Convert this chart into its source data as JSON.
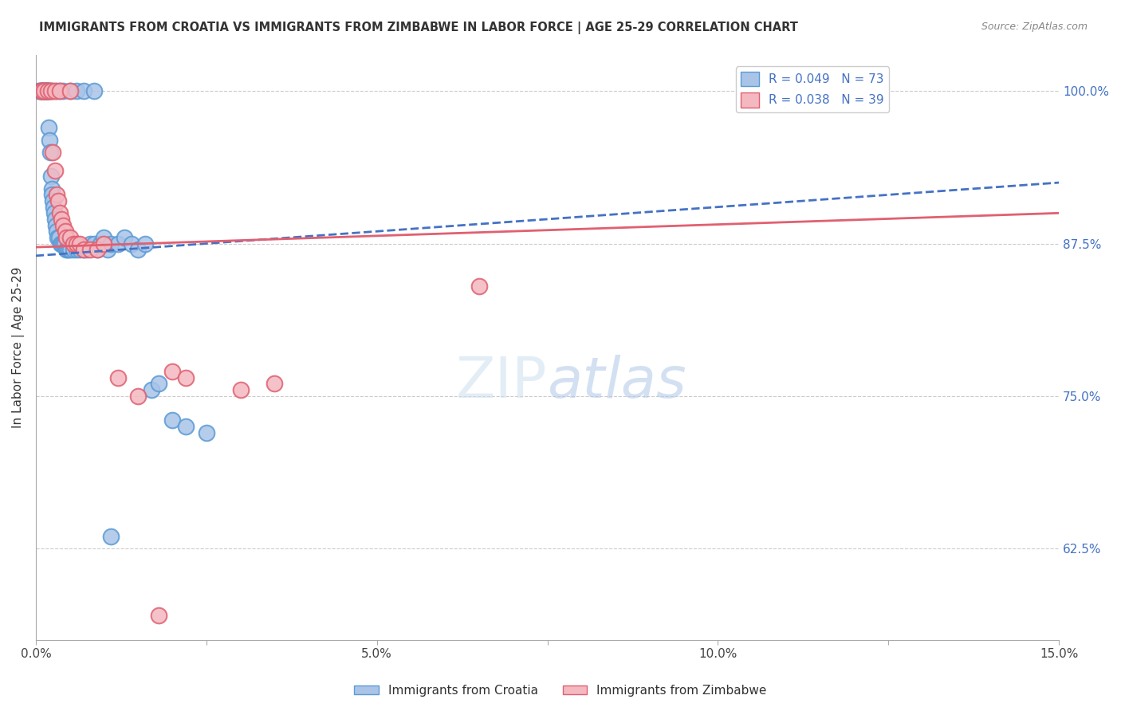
{
  "title": "IMMIGRANTS FROM CROATIA VS IMMIGRANTS FROM ZIMBABWE IN LABOR FORCE | AGE 25-29 CORRELATION CHART",
  "source": "Source: ZipAtlas.com",
  "ylabel": "In Labor Force | Age 25-29",
  "xlim": [
    0.0,
    15.0
  ],
  "ylim": [
    55.0,
    103.0
  ],
  "xticks": [
    0.0,
    2.5,
    5.0,
    7.5,
    10.0,
    12.5,
    15.0
  ],
  "xticklabels": [
    "0.0%",
    "",
    "5.0%",
    "",
    "10.0%",
    "",
    "15.0%"
  ],
  "yticks": [
    62.5,
    75.0,
    87.5,
    100.0
  ],
  "yticklabels": [
    "62.5%",
    "75.0%",
    "87.5%",
    "100.0%"
  ],
  "grid_color": "#cccccc",
  "background_color": "#ffffff",
  "croatia_color": "#aac4e8",
  "croatia_edge_color": "#5b9bd5",
  "zimbabwe_color": "#f4b8c1",
  "zimbabwe_edge_color": "#e06070",
  "croatia_R": 0.049,
  "croatia_N": 73,
  "zimbabwe_R": 0.038,
  "zimbabwe_N": 39,
  "croatia_line_color": "#4472c4",
  "zimbabwe_line_color": "#e06070",
  "legend_label_croatia": "Immigrants from Croatia",
  "legend_label_zimbabwe": "Immigrants from Zimbabwe",
  "croatia_x": [
    0.05,
    0.07,
    0.08,
    0.09,
    0.1,
    0.11,
    0.12,
    0.13,
    0.14,
    0.15,
    0.16,
    0.17,
    0.18,
    0.19,
    0.2,
    0.21,
    0.22,
    0.23,
    0.24,
    0.25,
    0.26,
    0.27,
    0.28,
    0.29,
    0.3,
    0.32,
    0.34,
    0.36,
    0.38,
    0.4,
    0.42,
    0.44,
    0.46,
    0.48,
    0.5,
    0.55,
    0.6,
    0.65,
    0.7,
    0.75,
    0.8,
    0.85,
    0.9,
    0.95,
    1.0,
    1.05,
    1.1,
    1.2,
    1.3,
    1.4,
    1.5,
    1.6,
    1.7,
    1.8,
    2.0,
    2.2,
    2.5,
    0.05,
    0.08,
    0.1,
    0.12,
    0.15,
    0.18,
    0.2,
    0.25,
    0.3,
    0.35,
    0.4,
    0.5,
    0.6,
    0.7,
    0.85,
    1.1
  ],
  "croatia_y": [
    100.0,
    100.0,
    100.0,
    100.0,
    100.0,
    100.0,
    100.0,
    100.0,
    100.0,
    100.0,
    100.0,
    100.0,
    100.0,
    97.0,
    96.0,
    95.0,
    93.0,
    92.0,
    91.5,
    91.0,
    90.5,
    90.0,
    89.5,
    89.0,
    88.5,
    88.0,
    88.0,
    87.5,
    87.5,
    87.5,
    87.5,
    87.0,
    87.0,
    87.0,
    87.0,
    87.0,
    87.0,
    87.0,
    87.0,
    87.0,
    87.5,
    87.5,
    87.0,
    87.5,
    88.0,
    87.0,
    87.5,
    87.5,
    88.0,
    87.5,
    87.0,
    87.5,
    75.5,
    76.0,
    73.0,
    72.5,
    72.0,
    100.0,
    100.0,
    100.0,
    100.0,
    100.0,
    100.0,
    100.0,
    100.0,
    100.0,
    100.0,
    100.0,
    100.0,
    100.0,
    100.0,
    100.0,
    63.5
  ],
  "zimbabwe_x": [
    0.07,
    0.1,
    0.12,
    0.15,
    0.17,
    0.2,
    0.22,
    0.25,
    0.28,
    0.3,
    0.33,
    0.35,
    0.38,
    0.4,
    0.43,
    0.45,
    0.5,
    0.55,
    0.6,
    0.65,
    0.7,
    0.8,
    0.9,
    1.0,
    1.2,
    1.5,
    2.0,
    2.2,
    3.0,
    3.5,
    6.5,
    0.08,
    0.12,
    0.18,
    0.22,
    0.28,
    0.35,
    0.5,
    1.8
  ],
  "zimbabwe_y": [
    100.0,
    100.0,
    100.0,
    100.0,
    100.0,
    100.0,
    100.0,
    95.0,
    93.5,
    91.5,
    91.0,
    90.0,
    89.5,
    89.0,
    88.5,
    88.0,
    88.0,
    87.5,
    87.5,
    87.5,
    87.0,
    87.0,
    87.0,
    87.5,
    76.5,
    75.0,
    77.0,
    76.5,
    75.5,
    76.0,
    84.0,
    100.0,
    100.0,
    100.0,
    100.0,
    100.0,
    100.0,
    100.0,
    57.0
  ],
  "trendline_croatia_x0": 0.0,
  "trendline_croatia_y0": 86.5,
  "trendline_croatia_x1": 15.0,
  "trendline_croatia_y1": 92.5,
  "trendline_zimbabwe_x0": 0.0,
  "trendline_zimbabwe_y0": 87.2,
  "trendline_zimbabwe_x1": 15.0,
  "trendline_zimbabwe_y1": 90.0
}
